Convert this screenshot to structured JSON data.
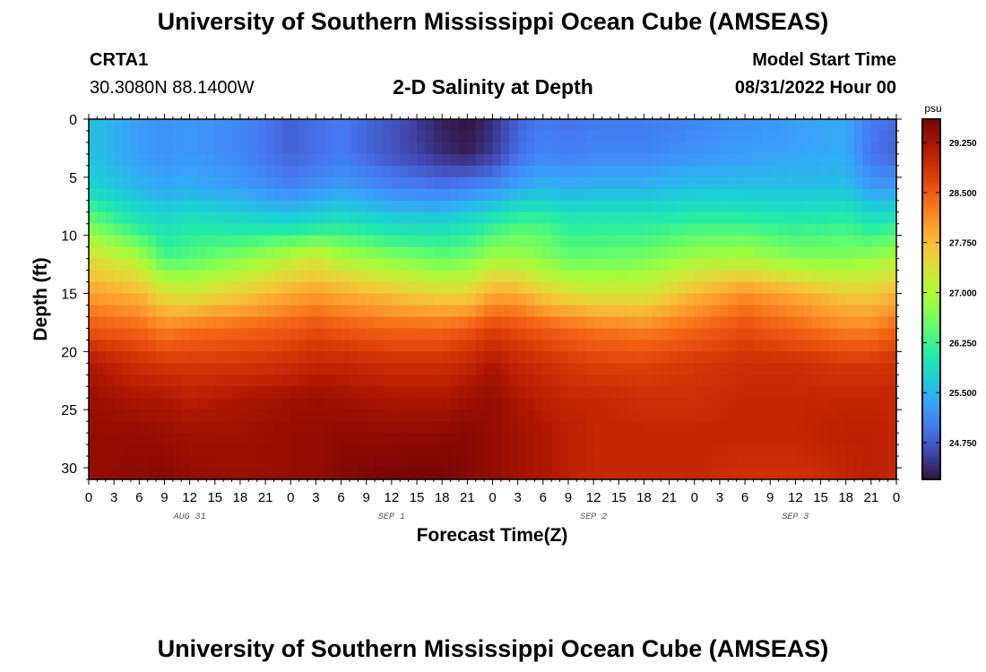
{
  "header": {
    "title": "University of Southern Mississippi Ocean Cube (AMSEAS)",
    "station": "CRTA1",
    "coords": "30.3080N  88.1400W",
    "subtitle": "2-D Salinity at Depth",
    "model_start_label": "Model Start Time",
    "model_start_value": "08/31/2022 Hour 00"
  },
  "footer": {
    "title": "University of Southern Mississippi Ocean Cube (AMSEAS)"
  },
  "chart_data": {
    "type": "heatmap",
    "title": "2-D Salinity at Depth",
    "xlabel": "Forecast Time(Z)",
    "ylabel": "Depth (ft)",
    "x_tick_labels": [
      "0",
      "3",
      "6",
      "9",
      "12",
      "15",
      "18",
      "21",
      "0",
      "3",
      "6",
      "9",
      "12",
      "15",
      "18",
      "21",
      "0",
      "3",
      "6",
      "9",
      "12",
      "15",
      "18",
      "21",
      "0",
      "3",
      "6",
      "9",
      "12",
      "15",
      "18",
      "21",
      "0"
    ],
    "date_labels": [
      "AUG 31",
      "SEP 1",
      "SEP 2",
      "SEP 3"
    ],
    "date_label_hours": [
      12,
      36,
      60,
      84
    ],
    "x_range_hours": [
      0,
      96
    ],
    "y_ticks": [
      0,
      5,
      10,
      15,
      20,
      25,
      30
    ],
    "ylim": [
      0,
      31
    ],
    "y_inverted": true,
    "colorbar": {
      "unit": "psu",
      "range": [
        24.2,
        29.6
      ],
      "ticks": [
        "24.750",
        "25.500",
        "26.250",
        "27.000",
        "27.750",
        "28.500",
        "29.250"
      ],
      "tick_values": [
        24.75,
        25.5,
        26.25,
        27.0,
        27.75,
        28.5,
        29.25
      ],
      "colormap": "turbo"
    },
    "hours": [
      0,
      6,
      9,
      12,
      18,
      24,
      27,
      30,
      36,
      42,
      45,
      48,
      51,
      54,
      57,
      60,
      66,
      72,
      78,
      84,
      90,
      93,
      96
    ],
    "depths_ft": [
      0,
      3,
      6,
      9,
      12,
      15,
      18,
      21,
      24,
      27,
      30.5
    ],
    "salinity_psu": [
      [
        25.6,
        25.3,
        25.2,
        25.25,
        25.1,
        24.8,
        24.9,
        25.0,
        24.7,
        24.3,
        24.2,
        24.4,
        24.8,
        25.0,
        24.9,
        25.0,
        25.0,
        25.1,
        25.2,
        25.3,
        25.4,
        25.0,
        24.9
      ],
      [
        25.6,
        25.3,
        25.2,
        25.25,
        25.1,
        24.8,
        24.9,
        25.0,
        24.7,
        24.4,
        24.3,
        24.5,
        24.9,
        25.1,
        25.05,
        25.1,
        25.1,
        25.2,
        25.3,
        25.35,
        25.4,
        24.95,
        24.8
      ],
      [
        25.8,
        25.5,
        25.4,
        25.45,
        25.3,
        25.1,
        25.2,
        25.3,
        25.1,
        25.0,
        25.1,
        25.2,
        25.4,
        25.5,
        25.45,
        25.5,
        25.5,
        25.6,
        25.6,
        25.6,
        25.6,
        25.3,
        25.3
      ],
      [
        26.6,
        26.0,
        25.9,
        26.0,
        25.9,
        25.8,
        25.9,
        26.0,
        25.8,
        25.8,
        25.9,
        26.1,
        26.3,
        26.3,
        26.1,
        26.1,
        26.1,
        26.2,
        26.2,
        26.1,
        26.2,
        26.0,
        26.1
      ],
      [
        27.4,
        27.0,
        26.3,
        26.4,
        26.7,
        27.1,
        27.3,
        27.0,
        26.7,
        26.5,
        26.6,
        26.9,
        26.9,
        26.7,
        26.5,
        26.5,
        26.6,
        26.9,
        27.0,
        26.7,
        26.7,
        26.8,
        27.0
      ],
      [
        28.0,
        27.8,
        27.4,
        27.3,
        27.6,
        27.9,
        28.0,
        27.9,
        27.7,
        27.5,
        27.5,
        27.9,
        27.9,
        27.6,
        27.4,
        27.3,
        27.3,
        27.8,
        28.1,
        27.9,
        27.6,
        27.6,
        27.8
      ],
      [
        28.5,
        28.4,
        28.2,
        28.3,
        28.4,
        28.5,
        28.6,
        28.5,
        28.4,
        28.4,
        28.5,
        28.7,
        28.6,
        28.5,
        28.4,
        28.3,
        28.2,
        28.4,
        28.6,
        28.4,
        28.2,
        28.2,
        28.4
      ],
      [
        29.2,
        28.9,
        28.8,
        28.8,
        28.8,
        28.9,
        29.0,
        29.0,
        28.9,
        28.9,
        29.0,
        29.2,
        29.0,
        28.9,
        28.8,
        28.7,
        28.7,
        28.8,
        28.9,
        28.9,
        28.8,
        28.8,
        28.9
      ],
      [
        29.35,
        29.2,
        29.2,
        29.1,
        29.2,
        29.3,
        29.35,
        29.3,
        29.2,
        29.2,
        29.3,
        29.4,
        29.2,
        29.1,
        29.0,
        29.0,
        28.9,
        28.9,
        29.0,
        29.0,
        29.0,
        29.0,
        29.0
      ],
      [
        29.4,
        29.4,
        29.35,
        29.3,
        29.3,
        29.4,
        29.4,
        29.45,
        29.4,
        29.45,
        29.5,
        29.4,
        29.3,
        29.2,
        29.1,
        29.0,
        29.0,
        29.0,
        29.0,
        29.0,
        29.1,
        29.1,
        29.0
      ],
      [
        29.4,
        29.45,
        29.5,
        29.4,
        29.35,
        29.4,
        29.4,
        29.5,
        29.6,
        29.6,
        29.5,
        29.4,
        29.3,
        29.2,
        29.1,
        29.0,
        29.0,
        29.0,
        28.9,
        28.9,
        29.0,
        29.1,
        29.0
      ]
    ]
  }
}
